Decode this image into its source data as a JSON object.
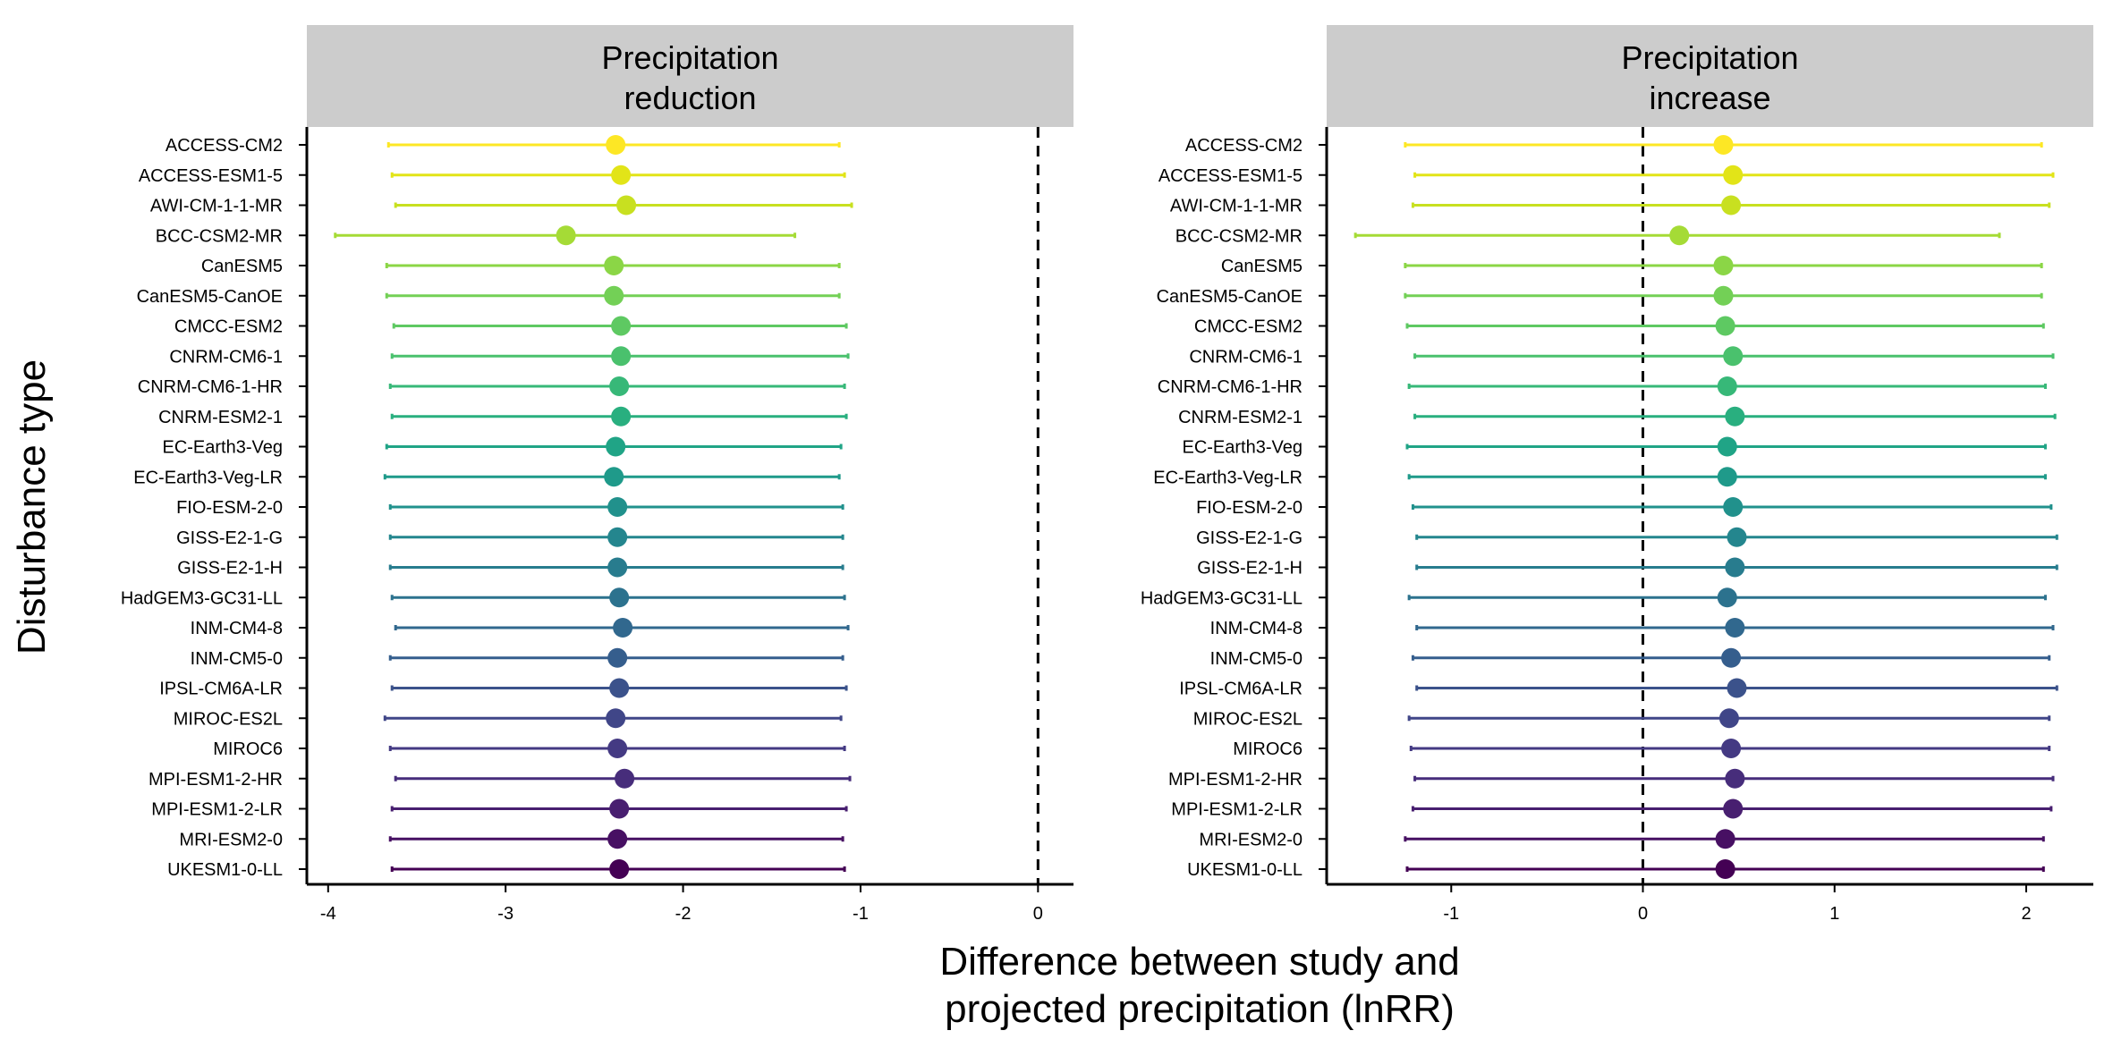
{
  "chart_data": {
    "type": "forest",
    "ylabel": "Disturbance type",
    "xlabel_lines": [
      "Difference between study and",
      "projected precipitation (lnRR)"
    ],
    "models": [
      "ACCESS-CM2",
      "ACCESS-ESM1-5",
      "AWI-CM-1-1-MR",
      "BCC-CSM2-MR",
      "CanESM5",
      "CanESM5-CanOE",
      "CMCC-ESM2",
      "CNRM-CM6-1",
      "CNRM-CM6-1-HR",
      "CNRM-ESM2-1",
      "EC-Earth3-Veg",
      "EC-Earth3-Veg-LR",
      "FIO-ESM-2-0",
      "GISS-E2-1-G",
      "GISS-E2-1-H",
      "HadGEM3-GC31-LL",
      "INM-CM4-8",
      "INM-CM5-0",
      "IPSL-CM6A-LR",
      "MIROC-ES2L",
      "MIROC6",
      "MPI-ESM1-2-HR",
      "MPI-ESM1-2-LR",
      "MRI-ESM2-0",
      "UKESM1-0-LL"
    ],
    "colors": [
      "#fde725",
      "#e2e418",
      "#c8e020",
      "#a5db36",
      "#8bd646",
      "#73d056",
      "#5ec962",
      "#4ac16d",
      "#37b878",
      "#29af7f",
      "#20a486",
      "#1f9a8a",
      "#21918c",
      "#24868e",
      "#287c8e",
      "#2c728e",
      "#31688e",
      "#355e8d",
      "#3b528b",
      "#404688",
      "#443a83",
      "#472d7b",
      "#481f70",
      "#471063",
      "#440154"
    ],
    "panels": [
      {
        "title_lines": [
          "Precipitation",
          "reduction"
        ],
        "xlim": [
          -4.12,
          0.2
        ],
        "xticks": [
          -4,
          -3,
          -2,
          -1,
          0
        ],
        "tick_labels": [
          "-4",
          "-3",
          "-2",
          "-1",
          "0"
        ],
        "estimate": [
          -2.38,
          -2.35,
          -2.32,
          -2.66,
          -2.39,
          -2.39,
          -2.35,
          -2.35,
          -2.36,
          -2.35,
          -2.38,
          -2.39,
          -2.37,
          -2.37,
          -2.37,
          -2.36,
          -2.34,
          -2.37,
          -2.36,
          -2.38,
          -2.37,
          -2.33,
          -2.36,
          -2.37,
          -2.36
        ],
        "lower": [
          -3.66,
          -3.64,
          -3.62,
          -3.96,
          -3.67,
          -3.67,
          -3.63,
          -3.64,
          -3.65,
          -3.64,
          -3.67,
          -3.68,
          -3.65,
          -3.65,
          -3.65,
          -3.64,
          -3.62,
          -3.65,
          -3.64,
          -3.68,
          -3.65,
          -3.62,
          -3.64,
          -3.65,
          -3.64
        ],
        "upper": [
          -1.12,
          -1.09,
          -1.05,
          -1.37,
          -1.12,
          -1.12,
          -1.08,
          -1.07,
          -1.09,
          -1.08,
          -1.11,
          -1.12,
          -1.1,
          -1.1,
          -1.1,
          -1.09,
          -1.07,
          -1.1,
          -1.08,
          -1.11,
          -1.09,
          -1.06,
          -1.08,
          -1.1,
          -1.09
        ]
      },
      {
        "title_lines": [
          "Precipitation",
          "increase"
        ],
        "xlim": [
          -1.65,
          2.35
        ],
        "xticks": [
          -1,
          0,
          1,
          2
        ],
        "tick_labels": [
          "-1",
          "0",
          "1",
          "2"
        ],
        "estimate": [
          0.42,
          0.47,
          0.46,
          0.19,
          0.42,
          0.42,
          0.43,
          0.47,
          0.44,
          0.48,
          0.44,
          0.44,
          0.47,
          0.49,
          0.48,
          0.44,
          0.48,
          0.46,
          0.49,
          0.45,
          0.46,
          0.48,
          0.47,
          0.43,
          0.43
        ],
        "lower": [
          -1.24,
          -1.19,
          -1.2,
          -1.5,
          -1.24,
          -1.24,
          -1.23,
          -1.19,
          -1.22,
          -1.19,
          -1.23,
          -1.22,
          -1.2,
          -1.18,
          -1.18,
          -1.22,
          -1.18,
          -1.2,
          -1.18,
          -1.22,
          -1.21,
          -1.19,
          -1.2,
          -1.24,
          -1.23
        ],
        "upper": [
          2.08,
          2.14,
          2.12,
          1.86,
          2.08,
          2.08,
          2.09,
          2.14,
          2.1,
          2.15,
          2.1,
          2.1,
          2.13,
          2.16,
          2.16,
          2.1,
          2.14,
          2.12,
          2.16,
          2.12,
          2.12,
          2.14,
          2.13,
          2.09,
          2.09
        ]
      }
    ]
  }
}
